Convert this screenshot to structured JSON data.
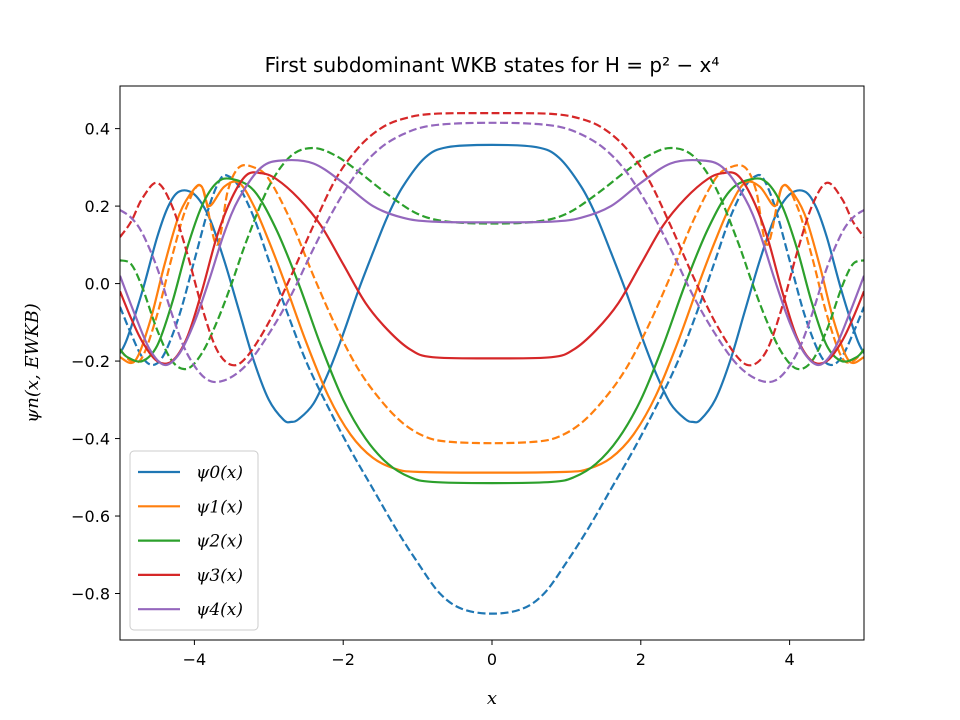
{
  "chart_data": {
    "type": "line",
    "title": "First subdominant WKB states for H = p² − x⁴",
    "xlabel": "x",
    "ylabel": "ψn(x, EWKB)",
    "xlim": [
      -5,
      5
    ],
    "ylim": [
      -0.92,
      0.51
    ],
    "xticks": [
      -4,
      -2,
      0,
      2,
      4
    ],
    "xtick_labels": [
      "−4",
      "−2",
      "0",
      "2",
      "4"
    ],
    "yticks": [
      -0.8,
      -0.6,
      -0.4,
      -0.2,
      0.0,
      0.2,
      0.4
    ],
    "ytick_labels": [
      "−0.8",
      "−0.6",
      "−0.4",
      "−0.2",
      "0.0",
      "0.2",
      "0.4"
    ],
    "grid": false,
    "legend_position": "lower-left",
    "line_styles": [
      "solid",
      "dashed"
    ],
    "series": [
      {
        "name": "ψ0(x)",
        "color": "#1f77b4",
        "solid": {
          "x": [
            0,
            0.6,
            0.9,
            1.2,
            1.4,
            1.6,
            1.8,
            2.0,
            2.2,
            2.4,
            2.6,
            2.7,
            2.8,
            3.0,
            3.2,
            3.4,
            3.6,
            3.8,
            4.0,
            4.2,
            4.35,
            4.5,
            4.7,
            4.9,
            5.0
          ],
          "y": [
            0.358,
            0.352,
            0.325,
            0.25,
            0.175,
            0.08,
            -0.02,
            -0.13,
            -0.23,
            -0.31,
            -0.35,
            -0.357,
            -0.352,
            -0.3,
            -0.2,
            -0.07,
            0.06,
            0.17,
            0.23,
            0.238,
            0.2,
            0.12,
            -0.02,
            -0.14,
            -0.18
          ]
        },
        "dashed": {
          "x": [
            0,
            0.4,
            0.7,
            1.0,
            1.3,
            1.6,
            1.9,
            2.2,
            2.5,
            2.8,
            3.0,
            3.2,
            3.4,
            3.55,
            3.65,
            3.8,
            4.0,
            4.2,
            4.4,
            4.55,
            4.7,
            4.85,
            5.0
          ],
          "y": [
            -0.852,
            -0.84,
            -0.8,
            -0.72,
            -0.63,
            -0.53,
            -0.43,
            -0.32,
            -0.2,
            -0.05,
            0.06,
            0.17,
            0.25,
            0.278,
            0.27,
            0.2,
            0.06,
            -0.08,
            -0.18,
            -0.21,
            -0.19,
            -0.13,
            -0.06
          ]
        }
      },
      {
        "name": "ψ1(x)",
        "color": "#ff7f0e",
        "solid": {
          "x": [
            0,
            1.0,
            1.3,
            1.6,
            1.9,
            2.2,
            2.5,
            2.8,
            3.0,
            3.2,
            3.4,
            3.6,
            3.8,
            3.9,
            4.0,
            4.2,
            4.4,
            4.6,
            4.8,
            5.0
          ],
          "y": [
            -0.488,
            -0.486,
            -0.478,
            -0.45,
            -0.39,
            -0.29,
            -0.15,
            0.01,
            0.11,
            0.2,
            0.26,
            0.25,
            0.2,
            0.25,
            0.245,
            0.18,
            0.05,
            -0.1,
            -0.2,
            -0.19
          ]
        },
        "dashed": {
          "x": [
            0,
            0.6,
            0.9,
            1.2,
            1.5,
            1.8,
            2.1,
            2.4,
            2.7,
            3.0,
            3.2,
            3.4,
            3.55,
            3.7,
            3.9,
            4.1,
            4.3,
            4.5,
            4.7,
            4.85,
            5.0
          ],
          "y": [
            -0.412,
            -0.408,
            -0.395,
            -0.36,
            -0.3,
            -0.22,
            -0.11,
            0.02,
            0.16,
            0.27,
            0.3,
            0.3,
            0.24,
            0.1,
            0.25,
            0.2,
            0.07,
            -0.08,
            -0.19,
            -0.2,
            -0.17
          ]
        }
      },
      {
        "name": "ψ2(x)",
        "color": "#2ca02c",
        "solid": {
          "x": [
            0,
            0.8,
            1.1,
            1.4,
            1.7,
            2.0,
            2.3,
            2.6,
            2.9,
            3.2,
            3.5,
            3.7,
            3.9,
            4.1,
            4.3,
            4.5,
            4.7,
            4.9,
            5.0
          ],
          "y": [
            -0.515,
            -0.512,
            -0.5,
            -0.465,
            -0.4,
            -0.3,
            -0.16,
            0.0,
            0.14,
            0.24,
            0.27,
            0.26,
            0.2,
            0.09,
            -0.05,
            -0.16,
            -0.2,
            -0.19,
            -0.17
          ]
        },
        "dashed": {
          "x": [
            0,
            0.6,
            1.0,
            1.4,
            1.8,
            2.1,
            2.4,
            2.7,
            3.0,
            3.3,
            3.5,
            3.7,
            3.9,
            4.1,
            4.3,
            4.5,
            4.7,
            4.85,
            5.0
          ],
          "y": [
            0.155,
            0.16,
            0.18,
            0.23,
            0.29,
            0.33,
            0.35,
            0.33,
            0.25,
            0.11,
            0.0,
            -0.1,
            -0.18,
            -0.22,
            -0.2,
            -0.12,
            -0.01,
            0.05,
            0.06
          ]
        }
      },
      {
        "name": "ψ3(x)",
        "color": "#d62728",
        "solid": {
          "x": [
            0,
            0.8,
            1.1,
            1.4,
            1.7,
            2.0,
            2.3,
            2.6,
            2.9,
            3.1,
            3.3,
            3.5,
            3.7,
            3.9,
            4.1,
            4.3,
            4.5,
            4.7,
            4.85,
            5.0
          ],
          "y": [
            -0.193,
            -0.19,
            -0.17,
            -0.12,
            -0.05,
            0.05,
            0.15,
            0.22,
            0.27,
            0.285,
            0.28,
            0.22,
            0.12,
            -0.02,
            -0.14,
            -0.2,
            -0.2,
            -0.15,
            -0.09,
            -0.02
          ]
        },
        "dashed": {
          "x": [
            0,
            0.8,
            1.2,
            1.5,
            1.8,
            2.1,
            2.4,
            2.7,
            3.0,
            3.3,
            3.5,
            3.7,
            3.9,
            4.1,
            4.3,
            4.5,
            4.7,
            4.85,
            5.0
          ],
          "y": [
            0.44,
            0.438,
            0.425,
            0.4,
            0.35,
            0.27,
            0.15,
            0.02,
            -0.1,
            -0.19,
            -0.21,
            -0.17,
            -0.06,
            0.08,
            0.2,
            0.26,
            0.22,
            0.16,
            0.12
          ]
        }
      },
      {
        "name": "ψ4(x)",
        "color": "#9467bd",
        "solid": {
          "x": [
            0,
            0.8,
            1.2,
            1.6,
            2.0,
            2.4,
            2.8,
            3.1,
            3.4,
            3.6,
            3.8,
            4.0,
            4.2,
            4.4,
            4.6,
            4.8,
            5.0
          ],
          "y": [
            0.158,
            0.16,
            0.17,
            0.2,
            0.26,
            0.31,
            0.318,
            0.3,
            0.22,
            0.13,
            0.01,
            -0.1,
            -0.18,
            -0.21,
            -0.17,
            -0.08,
            0.02
          ]
        },
        "dashed": {
          "x": [
            0,
            0.5,
            0.9,
            1.2,
            1.5,
            1.8,
            2.1,
            2.4,
            2.7,
            3.0,
            3.3,
            3.6,
            3.85,
            4.1,
            4.3,
            4.5,
            4.7,
            4.85,
            5.0
          ],
          "y": [
            0.415,
            0.413,
            0.405,
            0.385,
            0.35,
            0.29,
            0.2,
            0.09,
            -0.03,
            -0.13,
            -0.21,
            -0.25,
            -0.245,
            -0.18,
            -0.08,
            0.04,
            0.13,
            0.17,
            0.19
          ]
        }
      }
    ]
  }
}
